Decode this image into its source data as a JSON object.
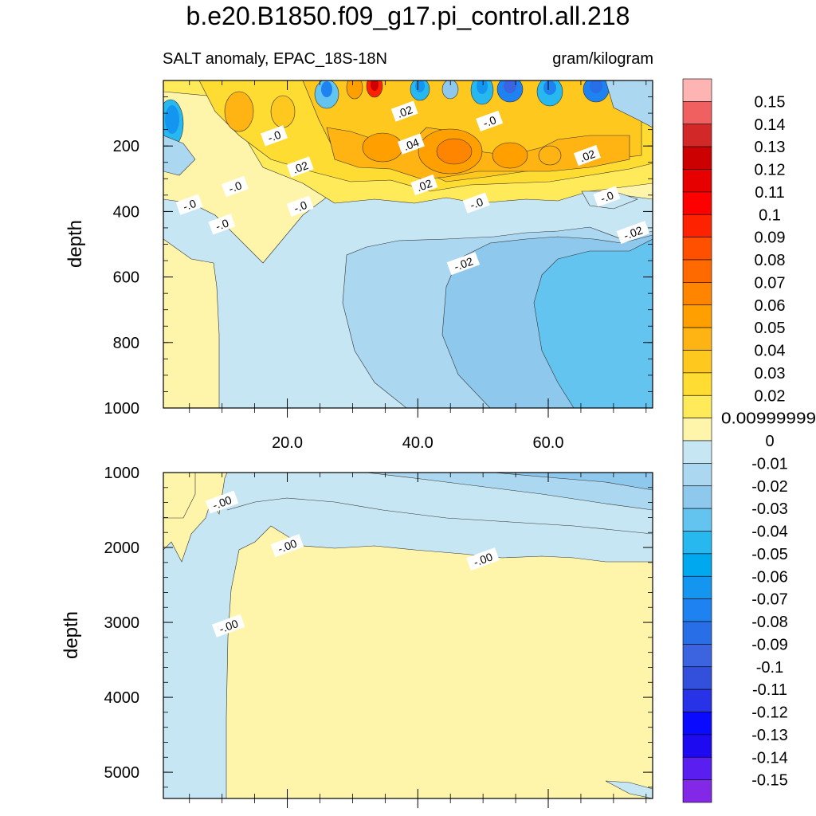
{
  "chart_data": [
    {
      "type": "heatmap",
      "panel": "upper",
      "title": "b.e20.B1850.f09_g17.pi_control.all.218",
      "subtitle_left": "SALT anomaly, EPAC_18S-18N",
      "subtitle_right": "gram/kilogram",
      "xlabel": "",
      "ylabel": "depth",
      "xlim": [
        1,
        76
      ],
      "ylim": [
        1000,
        0
      ],
      "x_ticks": [
        20,
        40,
        60
      ],
      "x_tick_labels": [
        "20.0",
        "40.0",
        "60.0"
      ],
      "y_ticks": [
        200,
        400,
        600,
        800,
        1000
      ],
      "y_tick_labels": [
        "200",
        "400",
        "600",
        "800",
        "1000"
      ],
      "contour_labels": [
        {
          "text": ".02",
          "x": 38,
          "y": 95
        },
        {
          "text": "-.0",
          "x": 51,
          "y": 125
        },
        {
          "text": "-.0",
          "x": 18,
          "y": 170
        },
        {
          "text": ".04",
          "x": 39,
          "y": 195
        },
        {
          "text": ".02",
          "x": 66,
          "y": 230
        },
        {
          "text": ".02",
          "x": 22,
          "y": 265
        },
        {
          "text": ".02",
          "x": 41,
          "y": 320
        },
        {
          "text": "-.0",
          "x": 12,
          "y": 325
        },
        {
          "text": "-.0",
          "x": 5,
          "y": 380
        },
        {
          "text": "-.0",
          "x": 22,
          "y": 385
        },
        {
          "text": "-.0",
          "x": 49,
          "y": 375
        },
        {
          "text": "-.0",
          "x": 69,
          "y": 355
        },
        {
          "text": "-.0",
          "x": 10,
          "y": 440
        },
        {
          "text": "-.02",
          "x": 73,
          "y": 465
        },
        {
          "text": "-.02",
          "x": 47,
          "y": 560
        }
      ]
    },
    {
      "type": "heatmap",
      "panel": "lower",
      "xlabel": "",
      "ylabel": "depth",
      "xlim": [
        1,
        76
      ],
      "ylim": [
        5350,
        1000
      ],
      "y_ticks": [
        1000,
        2000,
        3000,
        4000,
        5000
      ],
      "y_tick_labels": [
        "1000",
        "2000",
        "3000",
        "4000",
        "5000"
      ],
      "contour_labels": [
        {
          "text": "-.00",
          "x": 10,
          "y": 1400
        },
        {
          "text": "-.00",
          "x": 20,
          "y": 1980
        },
        {
          "text": "-.00",
          "x": 50,
          "y": 2160
        },
        {
          "text": "-.00",
          "x": 11,
          "y": 3050
        }
      ]
    }
  ],
  "colorbar": {
    "labels": [
      "0.15",
      "0.14",
      "0.13",
      "0.12",
      "0.11",
      "0.1",
      "0.09",
      "0.08",
      "0.07",
      "0.06",
      "0.05",
      "0.04",
      "0.03",
      "0.02",
      "0.00999999",
      "0",
      "-0.01",
      "-0.02",
      "-0.03",
      "-0.04",
      "-0.05",
      "-0.06",
      "-0.07",
      "-0.08",
      "-0.09",
      "-0.1",
      "-0.11",
      "-0.12",
      "-0.13",
      "-0.14",
      "-0.15"
    ],
    "colors": [
      "#ffb4b4",
      "#f06060",
      "#d32828",
      "#cc0000",
      "#e60000",
      "#ff0000",
      "#ff2200",
      "#ff5000",
      "#ff6a00",
      "#ff8400",
      "#ffa000",
      "#ffb414",
      "#ffc81e",
      "#ffdc32",
      "#ffeb5a",
      "#fff5aa",
      "#c6e6f4",
      "#abd8f0",
      "#8ec8ec",
      "#64c4f0",
      "#28b8f0",
      "#00a8f0",
      "#1496f0",
      "#1e82f0",
      "#286ee6",
      "#3c64e0",
      "#3250dc",
      "#2832e6",
      "#0a0aff",
      "#1e0af0",
      "#5a1ef0",
      "#8228e6"
    ]
  }
}
